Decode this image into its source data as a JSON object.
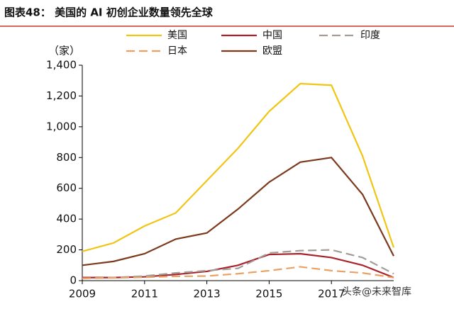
{
  "chart_data": {
    "type": "line",
    "title": "图表48： 美国的 AI 初创企业数量领先全球",
    "y_label": "（家）",
    "annotation": "头条@未来智库",
    "x": [
      2009,
      2010,
      2011,
      2012,
      2013,
      2014,
      2015,
      2016,
      2017,
      2018,
      2019
    ],
    "xlim": [
      2009,
      2019
    ],
    "xticks": [
      2009,
      2011,
      2013,
      2015,
      2017
    ],
    "ylim": [
      0,
      1400
    ],
    "yticks": [
      0,
      200,
      400,
      600,
      800,
      {
        "value": 1000,
        "label": "1,000"
      },
      {
        "value": 1200,
        "label": "1,200"
      },
      {
        "value": 1400,
        "label": "1,400"
      }
    ],
    "series": [
      {
        "name": "美国",
        "color": "#f0c514",
        "dash": false,
        "values": [
          190,
          245,
          355,
          440,
          650,
          860,
          1100,
          1280,
          1270,
          810,
          215
        ]
      },
      {
        "name": "中国",
        "color": "#a8232b",
        "dash": false,
        "values": [
          20,
          20,
          25,
          40,
          60,
          100,
          170,
          175,
          150,
          100,
          20
        ]
      },
      {
        "name": "印度",
        "color": "#a39d97",
        "dash": true,
        "values": [
          15,
          20,
          30,
          50,
          65,
          80,
          180,
          195,
          200,
          150,
          45
        ]
      },
      {
        "name": "日本",
        "color": "#e9a164",
        "dash": true,
        "values": [
          15,
          18,
          22,
          28,
          30,
          45,
          65,
          90,
          65,
          50,
          20
        ]
      },
      {
        "name": "欧盟",
        "color": "#7b3a1d",
        "dash": false,
        "values": [
          100,
          125,
          175,
          270,
          310,
          465,
          640,
          770,
          800,
          560,
          160
        ]
      }
    ]
  }
}
